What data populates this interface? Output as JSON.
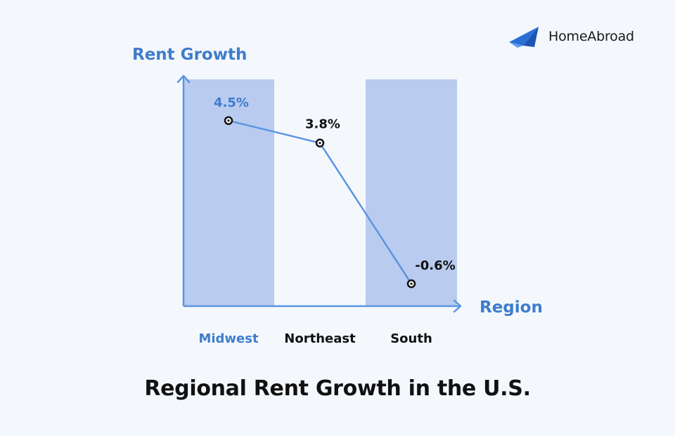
{
  "brand": {
    "name": "HomeAbroad",
    "icon": "paper-plane-icon",
    "icon_color": "#2b6fd6"
  },
  "chart_data": {
    "type": "line",
    "title": "Regional Rent Growth in the U.S.",
    "xlabel": "Region",
    "ylabel": "Rent Growth",
    "categories": [
      "Midwest",
      "Northeast",
      "South"
    ],
    "series": [
      {
        "values": [
          4.5,
          3.8,
          -0.6
        ],
        "labels": [
          "4.5%",
          "3.8%",
          "-0.6%"
        ]
      }
    ],
    "highlighted_categories": [
      "Midwest",
      "South"
    ],
    "ylim": [
      -1.3,
      5.9
    ],
    "grid": false,
    "colors": {
      "axis": "#5b95df",
      "line": "#5b95df",
      "band": "#b9cbef",
      "highlight_text": "#3f7ccc",
      "text": "#111111",
      "marker": "#111111"
    }
  }
}
